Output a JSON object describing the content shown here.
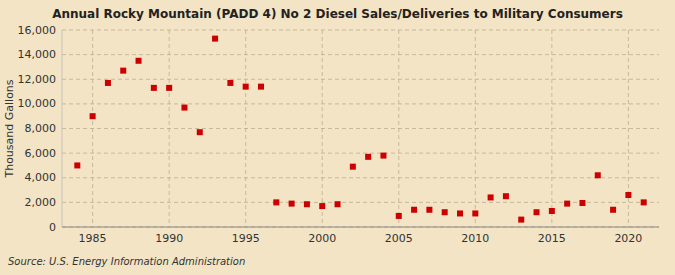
{
  "chart_data": {
    "type": "scatter",
    "title": "Annual Rocky Mountain (PADD 4) No 2 Diesel Sales/Deliveries to Military Consumers",
    "ylabel": "Thousand Gallons",
    "annotations": [
      "Source: U.S. Energy Information Administration"
    ],
    "x": [
      1984,
      1985,
      1986,
      1987,
      1988,
      1989,
      1990,
      1991,
      1992,
      1993,
      1994,
      1995,
      1996,
      1997,
      1998,
      1999,
      2000,
      2001,
      2002,
      2003,
      2004,
      2005,
      2006,
      2007,
      2008,
      2009,
      2010,
      2011,
      2012,
      2013,
      2014,
      2015,
      2016,
      2017,
      2018,
      2019,
      2020,
      2021
    ],
    "values": [
      5000,
      9000,
      11700,
      12700,
      13500,
      11300,
      11300,
      9700,
      7700,
      15300,
      11700,
      11400,
      11400,
      2000,
      1900,
      1850,
      1700,
      1850,
      4900,
      5700,
      5800,
      900,
      1400,
      1400,
      1200,
      1100,
      1100,
      2400,
      2500,
      600,
      1200,
      1300,
      1900,
      1950,
      4200,
      1400,
      2600,
      2000
    ],
    "color": "#cc0000",
    "marker": "square",
    "xlim": [
      1983,
      2022
    ],
    "ylim": [
      0,
      16000
    ],
    "xticks": [
      1985,
      1990,
      1995,
      2000,
      2005,
      2010,
      2015,
      2020
    ],
    "yticks": [
      0,
      {
        "value": 2000,
        "label": "2,000"
      },
      {
        "value": 4000,
        "label": "4,000"
      },
      {
        "value": 6000,
        "label": "6,000"
      },
      {
        "value": 8000,
        "label": "8,000"
      },
      {
        "value": 10000,
        "label": "10,000"
      },
      {
        "value": 12000,
        "label": "12,000"
      },
      {
        "value": 14000,
        "label": "14,000"
      },
      {
        "value": 16000,
        "label": "16,000"
      }
    ],
    "grid": true
  }
}
